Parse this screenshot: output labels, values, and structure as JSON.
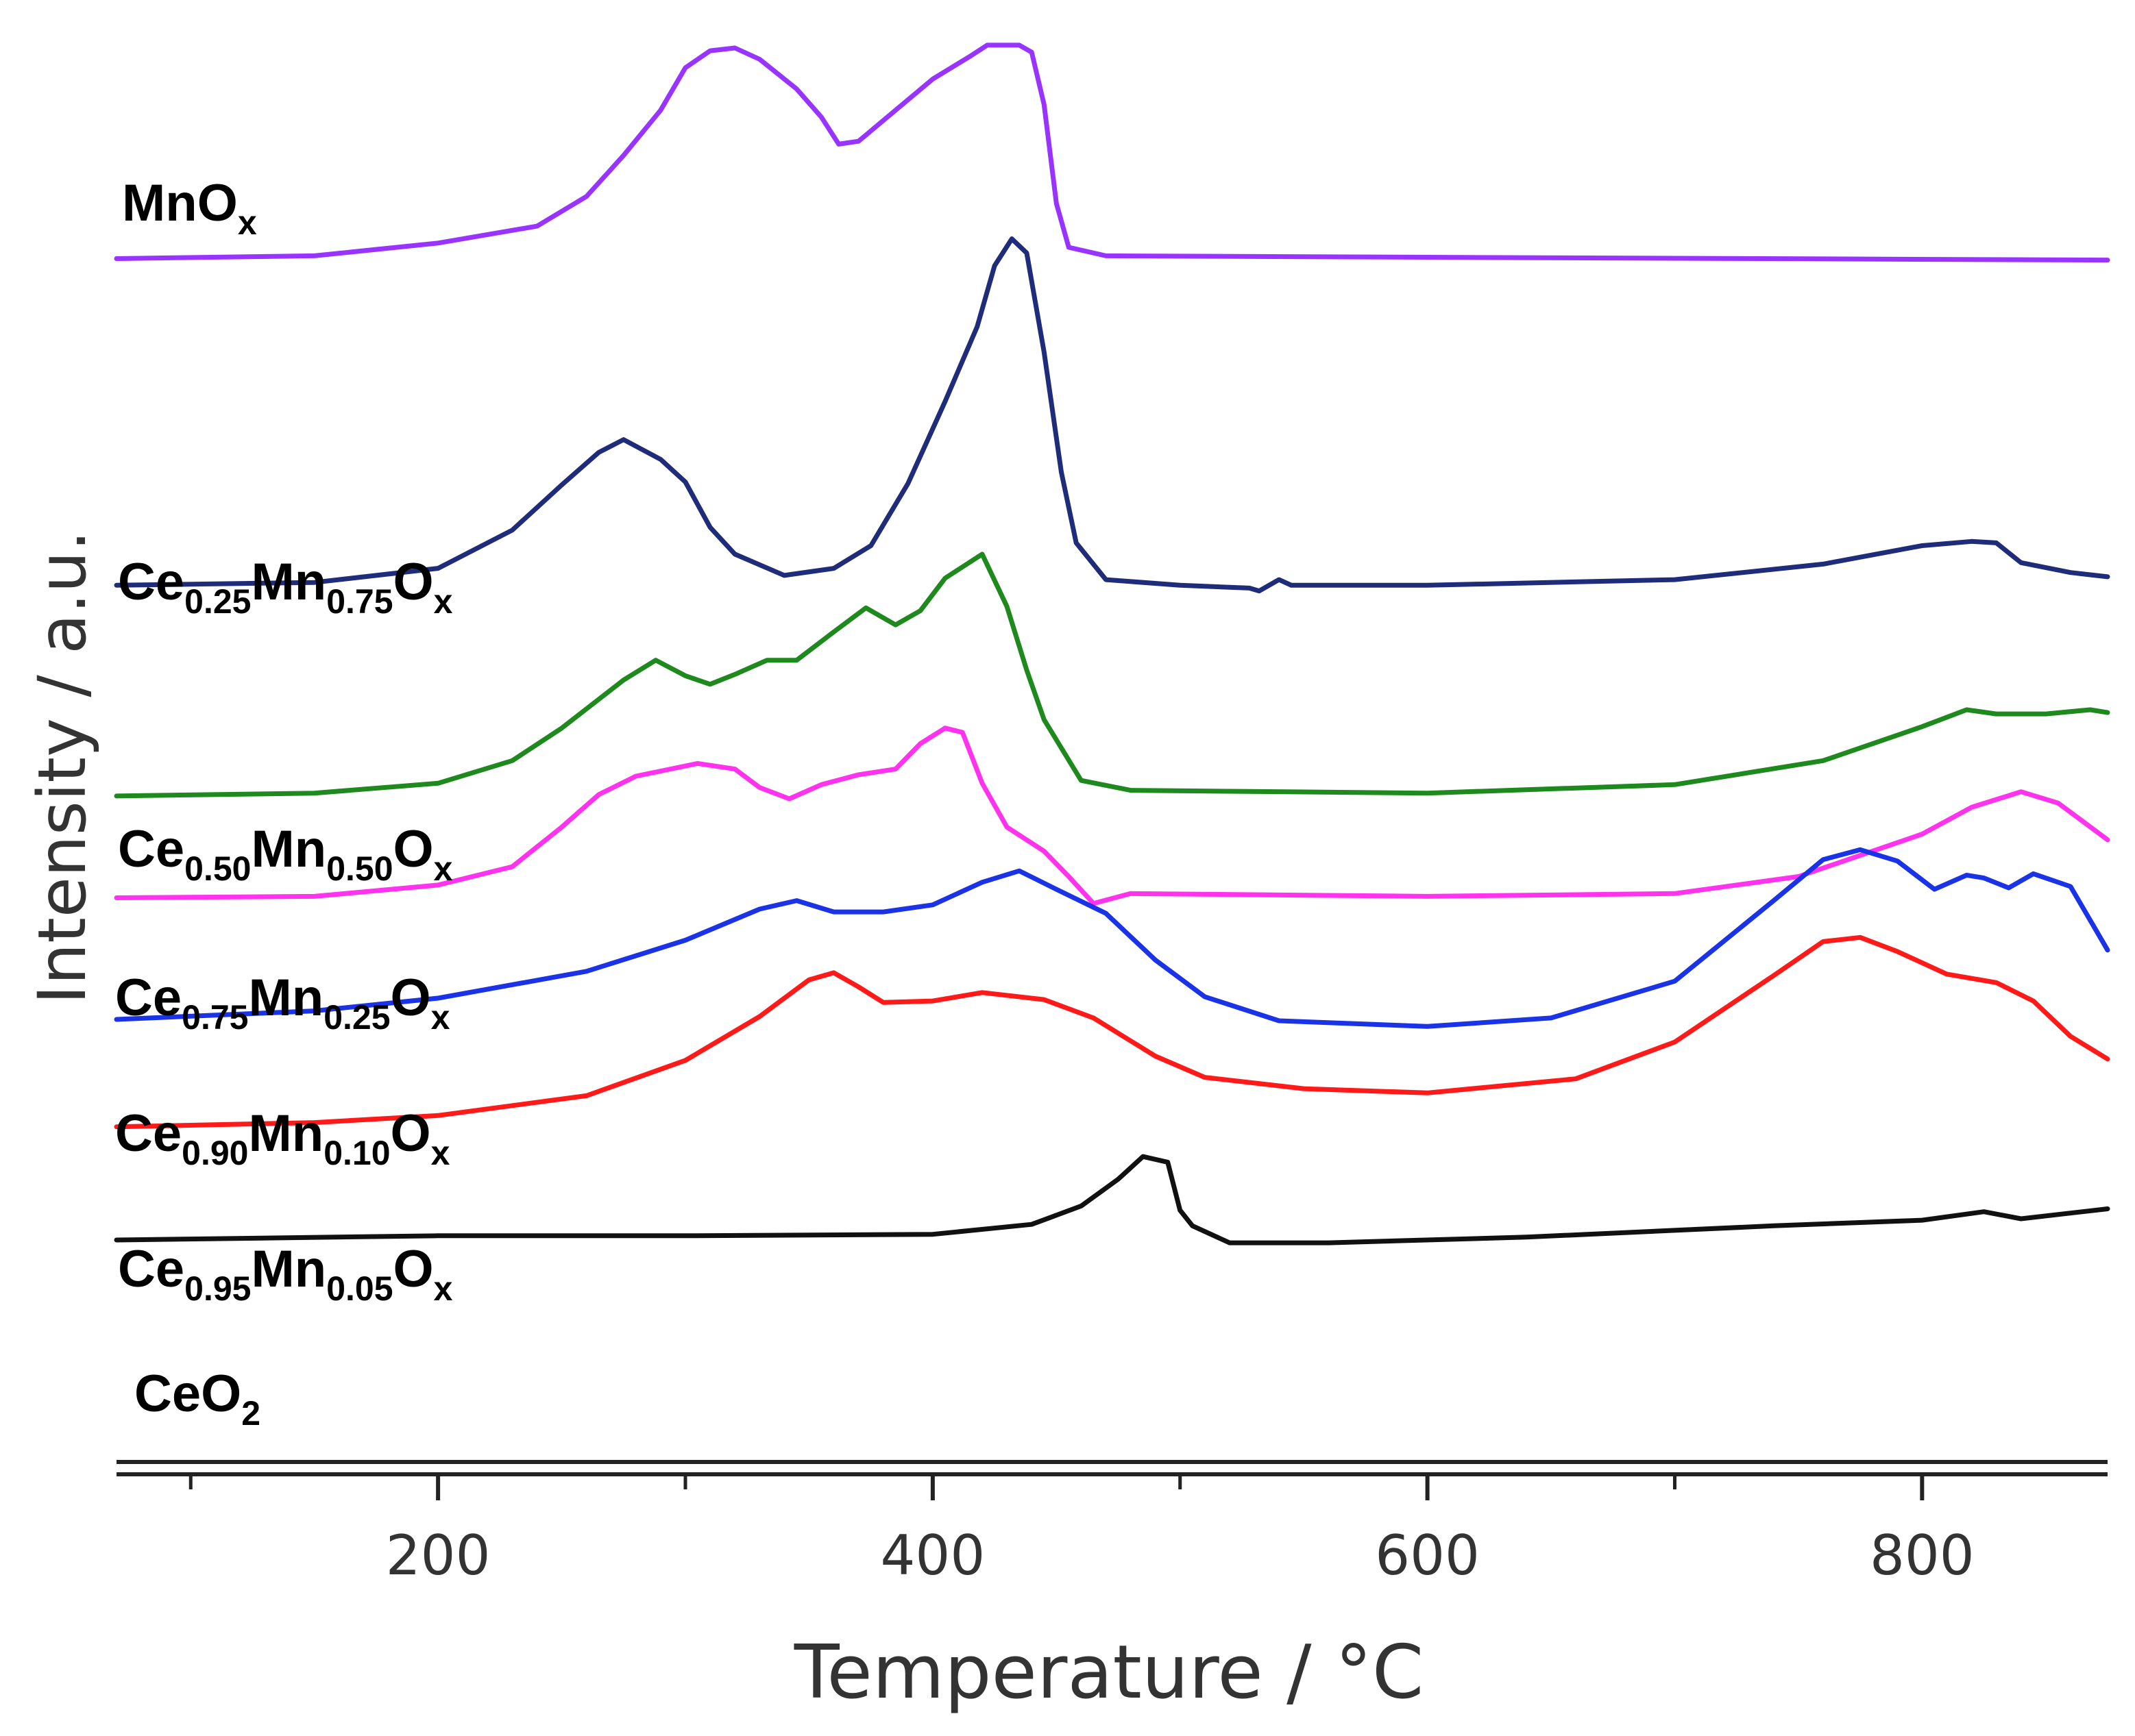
{
  "chart_data": {
    "type": "line",
    "title": "",
    "xlabel": "Temperature / °C",
    "ylabel": "Intensity / a.u.",
    "xlim": [
      70,
      875
    ],
    "ylim": [
      0,
      100
    ],
    "xticks": [
      200,
      400,
      600,
      800
    ],
    "xtick_labels": [
      "200",
      "400",
      "600",
      "800"
    ],
    "minor_xticks": [
      100,
      300,
      500,
      700
    ],
    "yticks_shown": false,
    "grid": false,
    "legend": "inline labels at left of each curve",
    "series": [
      {
        "id": "mnox",
        "name": "MnOx",
        "label": {
          "base1": "MnO",
          "sub1": "x"
        },
        "color": "#9933ff",
        "points": [
          [
            70,
            85.1
          ],
          [
            150,
            85.3
          ],
          [
            200,
            86.2
          ],
          [
            240,
            87.4
          ],
          [
            260,
            89.5
          ],
          [
            275,
            92.4
          ],
          [
            290,
            95.6
          ],
          [
            300,
            98.6
          ],
          [
            310,
            99.8
          ],
          [
            320,
            100.0
          ],
          [
            330,
            99.2
          ],
          [
            345,
            97.1
          ],
          [
            355,
            95.1
          ],
          [
            362,
            93.2
          ],
          [
            370,
            93.4
          ],
          [
            385,
            95.6
          ],
          [
            400,
            97.8
          ],
          [
            415,
            99.4
          ],
          [
            422,
            100.2
          ],
          [
            435,
            100.2
          ],
          [
            440,
            99.7
          ],
          [
            445,
            96.0
          ],
          [
            450,
            89.0
          ],
          [
            455,
            85.9
          ],
          [
            470,
            85.3
          ],
          [
            600,
            85.2
          ],
          [
            875,
            85.0
          ]
        ]
      },
      {
        "id": "ce025",
        "name": "Ce0.25Mn0.75Ox",
        "label": {
          "base1": "Ce",
          "sub1": "0.25",
          "base2": "Mn",
          "sub2": "0.75",
          "base3": "O",
          "sub3": "x"
        },
        "color": "#1f2c7a",
        "points": [
          [
            70,
            62.0
          ],
          [
            150,
            62.2
          ],
          [
            200,
            63.2
          ],
          [
            230,
            65.9
          ],
          [
            250,
            69.1
          ],
          [
            265,
            71.4
          ],
          [
            275,
            72.3
          ],
          [
            290,
            70.9
          ],
          [
            300,
            69.3
          ],
          [
            310,
            66.1
          ],
          [
            320,
            64.2
          ],
          [
            340,
            62.7
          ],
          [
            360,
            63.2
          ],
          [
            375,
            64.8
          ],
          [
            390,
            69.2
          ],
          [
            405,
            75.0
          ],
          [
            418,
            80.3
          ],
          [
            425,
            84.6
          ],
          [
            432,
            86.5
          ],
          [
            438,
            85.5
          ],
          [
            445,
            78.5
          ],
          [
            452,
            70.0
          ],
          [
            458,
            65.0
          ],
          [
            470,
            62.4
          ],
          [
            500,
            62.0
          ],
          [
            528,
            61.8
          ],
          [
            532,
            61.6
          ],
          [
            540,
            62.4
          ],
          [
            545,
            62.0
          ],
          [
            600,
            62.0
          ],
          [
            700,
            62.4
          ],
          [
            760,
            63.5
          ],
          [
            800,
            64.8
          ],
          [
            820,
            65.1
          ],
          [
            830,
            65.0
          ],
          [
            840,
            63.6
          ],
          [
            860,
            62.9
          ],
          [
            875,
            62.6
          ]
        ]
      },
      {
        "id": "ce050",
        "name": "Ce0.50Mn0.50Ox",
        "label": {
          "base1": "Ce",
          "sub1": "0.50",
          "base2": "Mn",
          "sub2": "0.50",
          "base3": "O",
          "sub3": "x"
        },
        "color": "#1e8a1e",
        "points": [
          [
            70,
            47.1
          ],
          [
            150,
            47.3
          ],
          [
            200,
            48.0
          ],
          [
            230,
            49.6
          ],
          [
            250,
            51.9
          ],
          [
            275,
            55.3
          ],
          [
            288,
            56.7
          ],
          [
            300,
            55.6
          ],
          [
            310,
            55.0
          ],
          [
            320,
            55.7
          ],
          [
            333,
            56.7
          ],
          [
            345,
            56.7
          ],
          [
            360,
            58.7
          ],
          [
            373,
            60.4
          ],
          [
            385,
            59.2
          ],
          [
            395,
            60.2
          ],
          [
            405,
            62.5
          ],
          [
            420,
            64.2
          ],
          [
            430,
            60.5
          ],
          [
            438,
            56.0
          ],
          [
            445,
            52.5
          ],
          [
            460,
            48.2
          ],
          [
            480,
            47.5
          ],
          [
            600,
            47.3
          ],
          [
            700,
            47.9
          ],
          [
            760,
            49.6
          ],
          [
            800,
            52.0
          ],
          [
            818,
            53.2
          ],
          [
            830,
            52.9
          ],
          [
            850,
            52.9
          ],
          [
            868,
            53.2
          ],
          [
            875,
            53.0
          ]
        ]
      },
      {
        "id": "ce075",
        "name": "Ce0.75Mn0.25Ox",
        "label": {
          "base1": "Ce",
          "sub1": "0.75",
          "base2": "Mn",
          "sub2": "0.25",
          "base3": "O",
          "sub3": "x"
        },
        "color": "#ff33ee",
        "points": [
          [
            70,
            39.9
          ],
          [
            150,
            40.0
          ],
          [
            200,
            40.8
          ],
          [
            230,
            42.1
          ],
          [
            250,
            44.9
          ],
          [
            265,
            47.2
          ],
          [
            280,
            48.5
          ],
          [
            305,
            49.4
          ],
          [
            320,
            49.0
          ],
          [
            330,
            47.7
          ],
          [
            342,
            46.9
          ],
          [
            355,
            47.9
          ],
          [
            370,
            48.6
          ],
          [
            385,
            49.0
          ],
          [
            395,
            50.8
          ],
          [
            405,
            51.9
          ],
          [
            412,
            51.6
          ],
          [
            420,
            48.0
          ],
          [
            430,
            44.9
          ],
          [
            445,
            43.2
          ],
          [
            455,
            41.4
          ],
          [
            465,
            39.5
          ],
          [
            480,
            40.2
          ],
          [
            600,
            40.0
          ],
          [
            700,
            40.2
          ],
          [
            750,
            41.4
          ],
          [
            800,
            44.4
          ],
          [
            820,
            46.3
          ],
          [
            840,
            47.4
          ],
          [
            855,
            46.6
          ],
          [
            875,
            44.0
          ]
        ]
      },
      {
        "id": "ce090",
        "name": "Ce0.90Mn0.10Ox",
        "label": {
          "base1": "Ce",
          "sub1": "0.90",
          "base2": "Mn",
          "sub2": "0.10",
          "base3": "O",
          "sub3": "x"
        },
        "color": "#1a33e6",
        "points": [
          [
            70,
            31.3
          ],
          [
            150,
            31.9
          ],
          [
            200,
            32.8
          ],
          [
            260,
            34.7
          ],
          [
            300,
            36.9
          ],
          [
            330,
            39.1
          ],
          [
            345,
            39.7
          ],
          [
            360,
            38.9
          ],
          [
            380,
            38.9
          ],
          [
            400,
            39.4
          ],
          [
            420,
            41.0
          ],
          [
            435,
            41.8
          ],
          [
            450,
            40.5
          ],
          [
            470,
            38.8
          ],
          [
            490,
            35.5
          ],
          [
            510,
            32.9
          ],
          [
            540,
            31.2
          ],
          [
            600,
            30.8
          ],
          [
            650,
            31.4
          ],
          [
            700,
            34.0
          ],
          [
            740,
            39.7
          ],
          [
            760,
            42.6
          ],
          [
            775,
            43.3
          ],
          [
            790,
            42.5
          ],
          [
            805,
            40.5
          ],
          [
            818,
            41.5
          ],
          [
            825,
            41.3
          ],
          [
            835,
            40.6
          ],
          [
            845,
            41.6
          ],
          [
            860,
            40.7
          ],
          [
            875,
            36.2
          ]
        ]
      },
      {
        "id": "ce095",
        "name": "Ce0.95Mn0.05Ox",
        "label": {
          "base1": "Ce",
          "sub1": "0.95",
          "base2": "Mn",
          "sub2": "0.05",
          "base3": "O",
          "sub3": "x"
        },
        "color": "#ff1a1a",
        "points": [
          [
            70,
            23.7
          ],
          [
            150,
            24.0
          ],
          [
            200,
            24.5
          ],
          [
            260,
            25.9
          ],
          [
            300,
            28.4
          ],
          [
            330,
            31.5
          ],
          [
            350,
            34.1
          ],
          [
            360,
            34.6
          ],
          [
            370,
            33.6
          ],
          [
            380,
            32.5
          ],
          [
            400,
            32.6
          ],
          [
            420,
            33.2
          ],
          [
            445,
            32.7
          ],
          [
            465,
            31.4
          ],
          [
            490,
            28.7
          ],
          [
            510,
            27.2
          ],
          [
            550,
            26.4
          ],
          [
            600,
            26.1
          ],
          [
            660,
            27.1
          ],
          [
            700,
            29.7
          ],
          [
            740,
            34.4
          ],
          [
            760,
            36.8
          ],
          [
            775,
            37.1
          ],
          [
            790,
            36.1
          ],
          [
            810,
            34.5
          ],
          [
            830,
            33.9
          ],
          [
            845,
            32.6
          ],
          [
            860,
            30.1
          ],
          [
            875,
            28.5
          ]
        ]
      },
      {
        "id": "ceo2",
        "name": "CeO2",
        "label": {
          "base1": "CeO",
          "sub1": "2"
        },
        "color": "#111111",
        "points": [
          [
            70,
            15.7
          ],
          [
            200,
            16.0
          ],
          [
            300,
            16.0
          ],
          [
            400,
            16.1
          ],
          [
            440,
            16.8
          ],
          [
            460,
            18.1
          ],
          [
            475,
            20.0
          ],
          [
            485,
            21.6
          ],
          [
            495,
            21.2
          ],
          [
            500,
            17.8
          ],
          [
            505,
            16.7
          ],
          [
            520,
            15.5
          ],
          [
            560,
            15.5
          ],
          [
            640,
            15.9
          ],
          [
            740,
            16.7
          ],
          [
            800,
            17.1
          ],
          [
            825,
            17.7
          ],
          [
            840,
            17.2
          ],
          [
            860,
            17.6
          ],
          [
            875,
            17.9
          ]
        ]
      }
    ]
  }
}
